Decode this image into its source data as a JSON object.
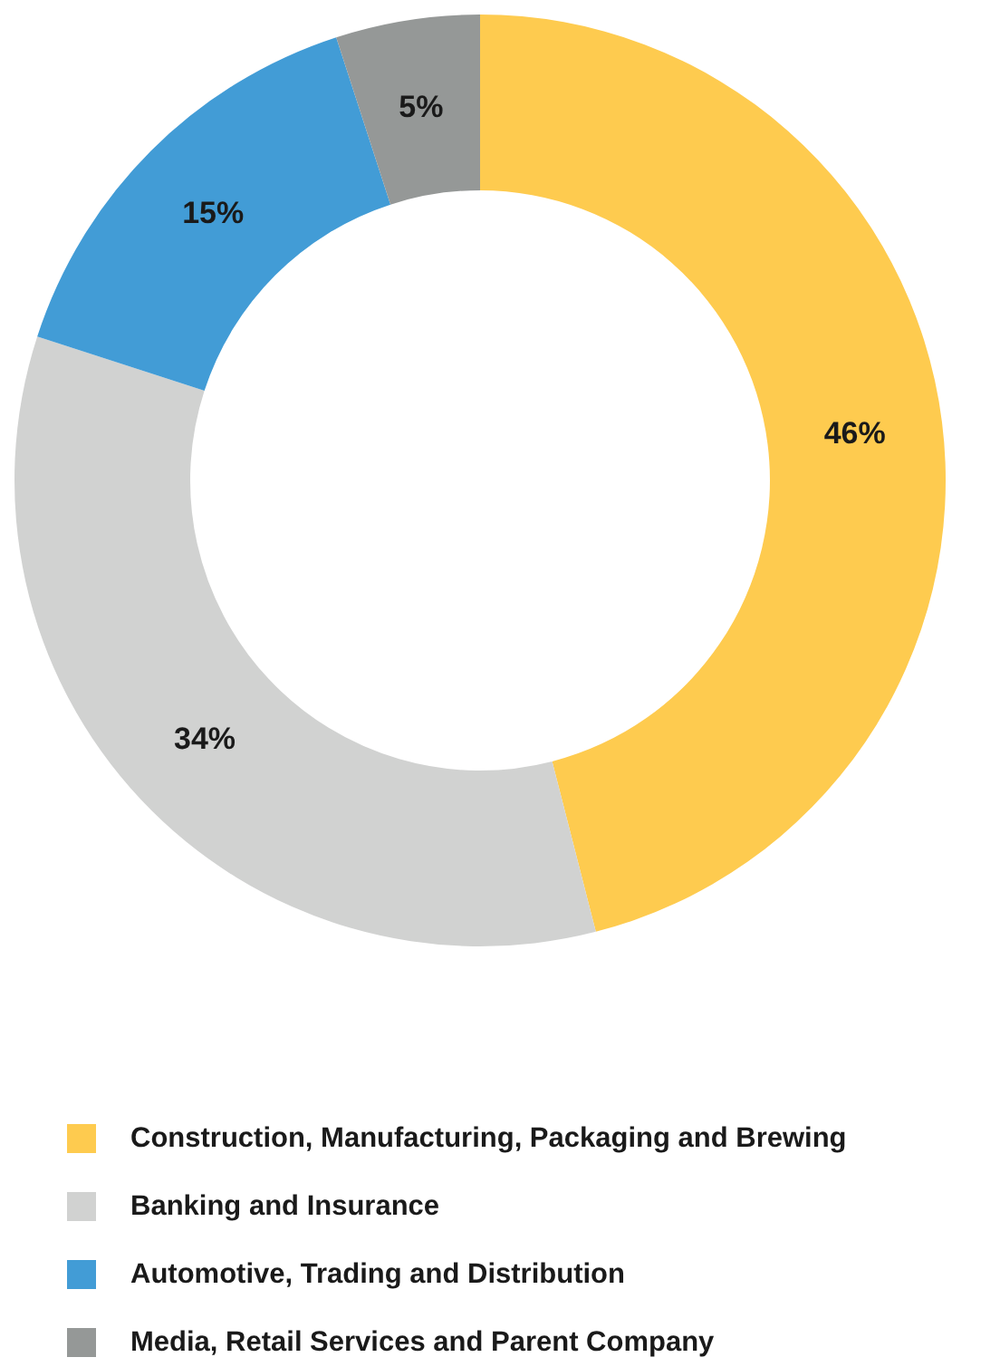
{
  "chart_data": {
    "type": "donut",
    "categories": [
      "Construction, Manufacturing, Packaging and Brewing",
      "Banking and Insurance",
      "Automotive, Trading and Distribution",
      "Media, Retail Services and Parent Company"
    ],
    "values": [
      46,
      34,
      15,
      5
    ],
    "colors": [
      "#fecb4f",
      "#d1d2d1",
      "#429cd6",
      "#959897"
    ],
    "value_labels": [
      "46%",
      "34%",
      "15%",
      "5%"
    ],
    "legend": "bottom"
  }
}
